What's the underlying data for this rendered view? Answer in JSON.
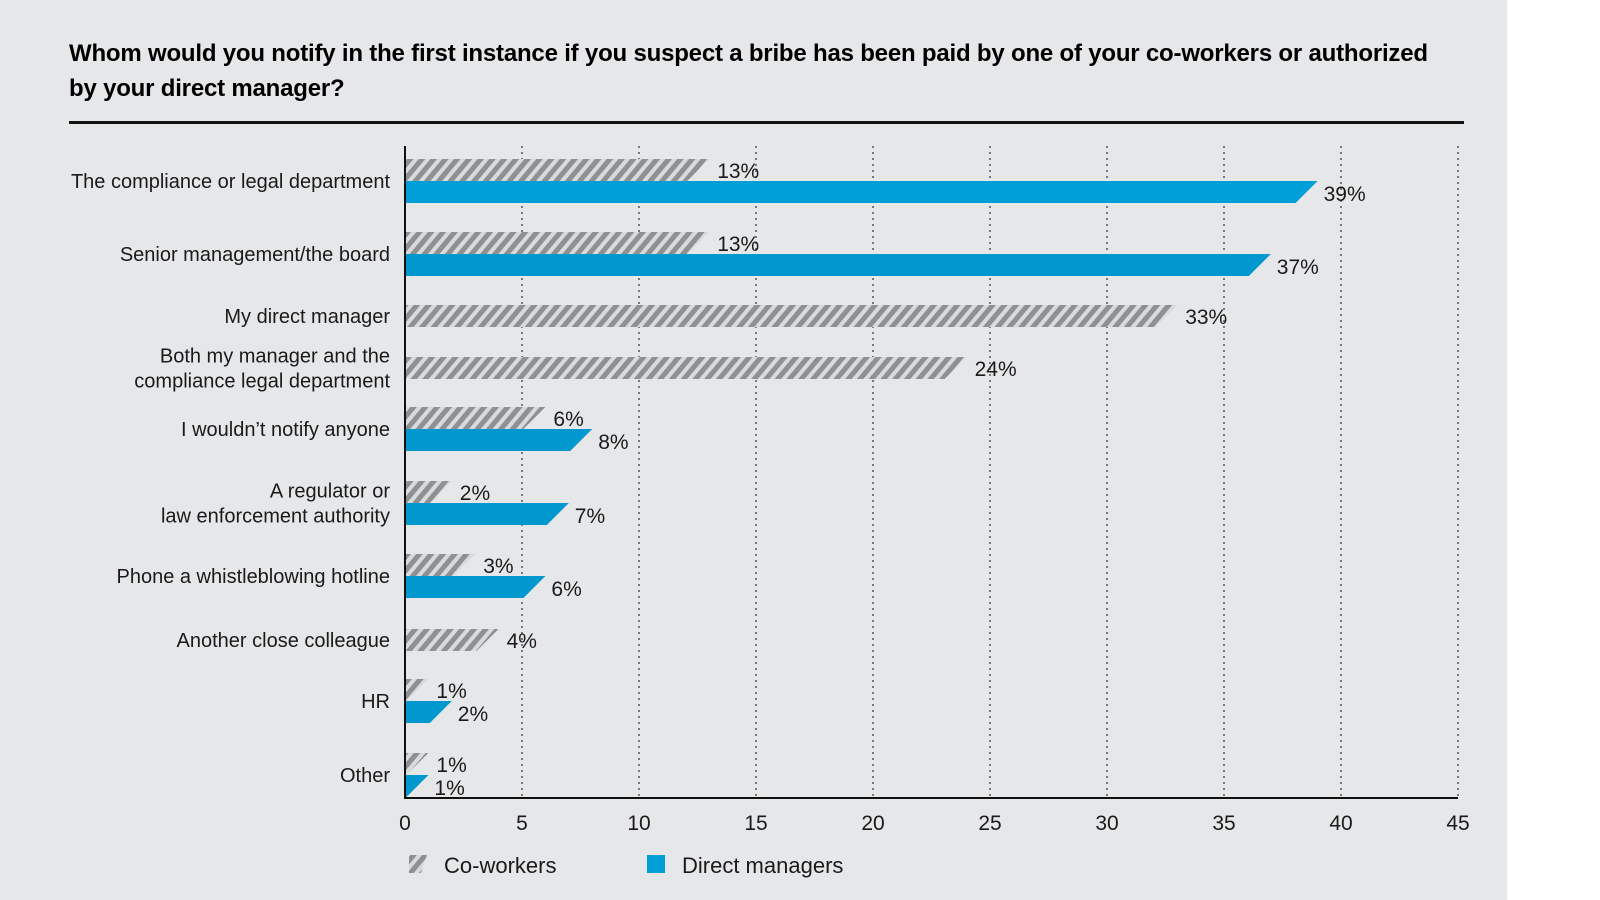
{
  "chart_data": {
    "type": "bar",
    "orientation": "horizontal",
    "title": "Whom would you notify in the first instance if you suspect a bribe has been paid by one of your co-workers or authorized by your direct manager?",
    "xlabel": "",
    "ylabel": "",
    "xlim": [
      0,
      45
    ],
    "xticks": [
      0,
      5,
      10,
      15,
      20,
      25,
      30,
      35,
      40,
      45
    ],
    "grid": "vertical dotted",
    "legend_position": "bottom-left",
    "categories": [
      [
        "The compliance or legal department"
      ],
      [
        "Senior management/the board"
      ],
      [
        "My direct manager"
      ],
      [
        "Both my manager and the",
        "compliance legal department"
      ],
      [
        "I wouldn’t notify anyone"
      ],
      [
        "A regulator or",
        "law enforcement authority"
      ],
      [
        "Phone a whistleblowing hotline"
      ],
      [
        "Another close colleague"
      ],
      [
        "HR"
      ],
      [
        "Other"
      ]
    ],
    "series": [
      {
        "name": "Co-workers",
        "color": "#8f9092",
        "pattern": "diagonal-hatch",
        "values": [
          13,
          13,
          33,
          24,
          6,
          2,
          3,
          4,
          1,
          1
        ],
        "labels": [
          "13%",
          "13%",
          "33%",
          "24%",
          "6%",
          "2%",
          "3%",
          "4%",
          "1%",
          "1%"
        ]
      },
      {
        "name": "Direct managers",
        "color": "#009fd8",
        "values": [
          39,
          37,
          null,
          null,
          8,
          7,
          6,
          null,
          2,
          1
        ],
        "labels": [
          "39%",
          "37%",
          null,
          null,
          "8%",
          "7%",
          "6%",
          null,
          "2%",
          "1%"
        ]
      }
    ]
  }
}
